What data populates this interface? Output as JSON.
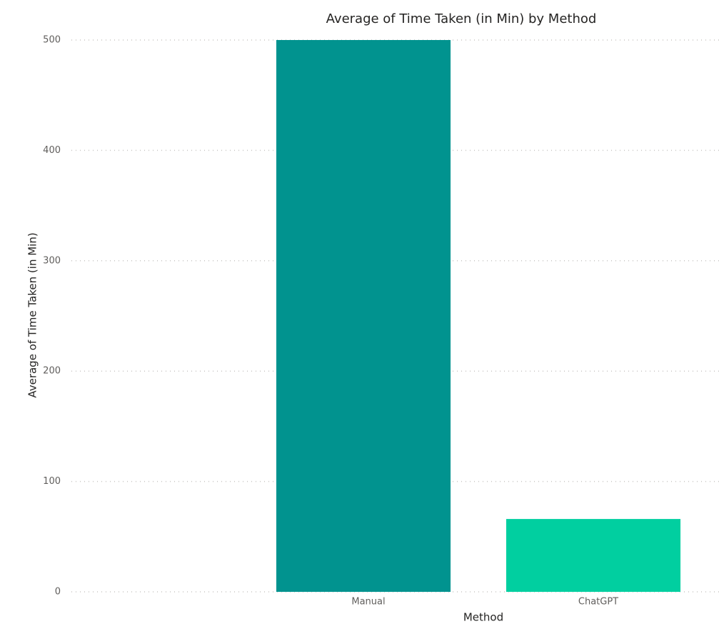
{
  "chart_data": {
    "type": "bar",
    "title": "Average of Time Taken (in Min) by Method",
    "x_label": "Method",
    "y_label": "Average of Time Taken (in Min)",
    "categories": [
      null,
      "Manual",
      "ChatGPT"
    ],
    "values": [
      null,
      500,
      66
    ],
    "colors": [
      "#01938f",
      "#01938f",
      "#01cfa0"
    ],
    "ylim": [
      0,
      500
    ],
    "yticks": [
      0,
      100,
      200,
      300,
      400,
      500
    ],
    "grid": true
  }
}
